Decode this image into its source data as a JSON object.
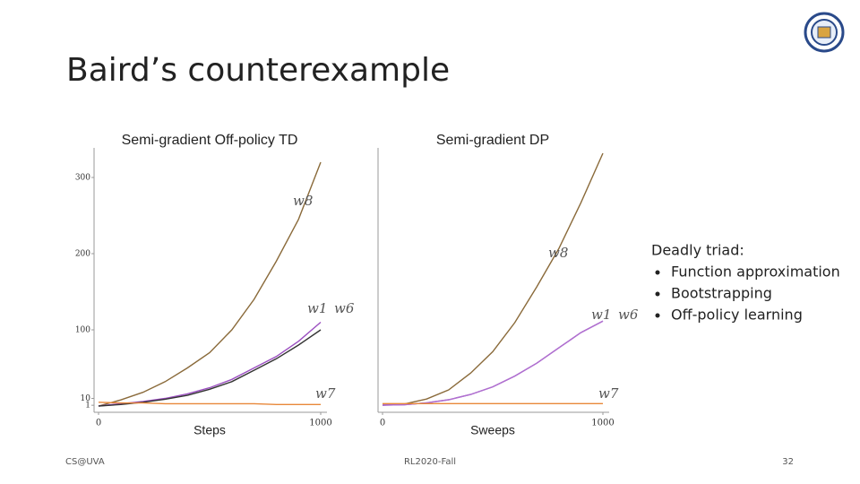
{
  "title": "Baird’s counterexample",
  "note": {
    "heading": "Deadly triad:",
    "bullets": [
      "Function approximation",
      "Bootstrapping",
      "Off-policy learning"
    ]
  },
  "footer": {
    "left": "CS@UVA",
    "center": "RL2020-Fall",
    "page": "32"
  },
  "chart_data": [
    {
      "type": "line",
      "title": "Semi-gradient Off-policy TD",
      "xlabel": "Steps",
      "x": [
        0,
        100,
        200,
        300,
        400,
        500,
        600,
        700,
        800,
        900,
        1000
      ],
      "xlim": [
        0,
        1000
      ],
      "xticks": [
        0,
        1000
      ],
      "ylim": [
        0,
        330
      ],
      "yticks": [
        1,
        10,
        100,
        200,
        300
      ],
      "series": [
        {
          "name": "w8",
          "color": "#8a6a3a",
          "values": [
            0,
            8,
            18,
            32,
            50,
            70,
            100,
            140,
            190,
            245,
            320
          ]
        },
        {
          "name": "w1",
          "color": "#9b4fc0",
          "values": [
            0,
            3,
            6,
            10,
            16,
            24,
            35,
            50,
            65,
            85,
            110
          ]
        },
        {
          "name": "w6",
          "color": "#333333",
          "values": [
            0,
            2,
            5,
            9,
            14,
            22,
            32,
            47,
            62,
            80,
            100
          ]
        },
        {
          "name": "w7",
          "color": "#e8883a",
          "values": [
            5,
            4,
            4,
            3,
            3,
            3,
            3,
            3,
            2,
            2,
            2
          ]
        }
      ]
    },
    {
      "type": "line",
      "title": "Semi-gradient DP",
      "xlabel": "Sweeps",
      "x": [
        0,
        100,
        200,
        300,
        400,
        500,
        600,
        700,
        800,
        900,
        1000
      ],
      "xlim": [
        0,
        1000
      ],
      "xticks": [
        0,
        1000
      ],
      "ylim": [
        0,
        330
      ],
      "series": [
        {
          "name": "w8",
          "color": "#8a6a3a",
          "values": [
            0,
            1.5,
            8,
            20,
            42,
            70,
            108,
            155,
            205,
            265,
            330
          ]
        },
        {
          "name": "w1",
          "color": "#9b4fc0",
          "values": [
            0,
            0.5,
            3,
            7,
            14,
            24,
            38,
            55,
            75,
            95,
            110
          ]
        },
        {
          "name": "w6",
          "color": "#b070d0",
          "values": [
            0,
            0.5,
            3,
            7,
            14,
            24,
            38,
            55,
            75,
            95,
            110
          ]
        },
        {
          "name": "w7",
          "color": "#e8883a",
          "values": [
            2,
            2,
            2,
            2,
            2,
            2,
            2,
            2,
            2,
            2,
            2
          ]
        }
      ]
    }
  ]
}
